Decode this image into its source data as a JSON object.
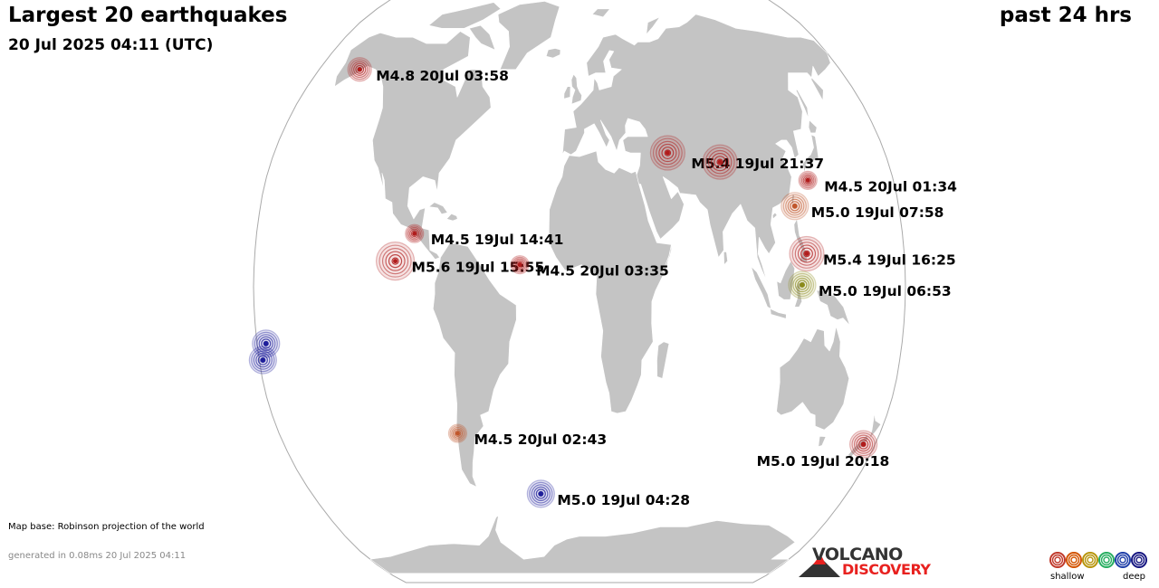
{
  "header": {
    "title": "Largest 20 earthquakes",
    "timestamp": "20 Jul 2025 04:11 (UTC)",
    "period": "past 24 hrs"
  },
  "footer": {
    "map_base": "Map base: Robinson projection of the world",
    "generated": "generated in 0.08ms 20 Jul 2025 04:11"
  },
  "branding": {
    "line1": "VOLCANO",
    "line2": "DISCOVERY",
    "colors": {
      "dark": "#333333",
      "red": "#e8211f"
    }
  },
  "legend": {
    "shallow_label": "shallow",
    "deep_label": "deep",
    "depth_colors": [
      "#c0392b",
      "#d35400",
      "#b7950b",
      "#27ae60",
      "#1f3fa8",
      "#151580"
    ]
  },
  "colors": {
    "ocean": "#ffffff",
    "land": "#c4c4c4",
    "land_border": "#ffffff",
    "map_outline": "#aaaaaa"
  },
  "earthquakes": [
    {
      "id": "q1",
      "label": "M4.8 20Jul 03:58",
      "magnitude": 4.8,
      "depth_class": "shallow",
      "color": "#b01c1c",
      "lat": 60.0,
      "lon": -152.0
    },
    {
      "id": "q2",
      "label": "M5.4 19Jul 21:37",
      "magnitude": 5.4,
      "depth_class": "shallow",
      "color": "#b01c1c",
      "lat": 36.5,
      "lon": 52.0
    },
    {
      "id": "q3",
      "label": "",
      "magnitude": 5.4,
      "depth_class": "shallow",
      "color": "#b01c1c",
      "lat": 34.0,
      "lon": 82.0
    },
    {
      "id": "q4",
      "label": "M4.5 20Jul 01:34",
      "magnitude": 4.5,
      "depth_class": "shallow",
      "color": "#b01c1c",
      "lat": 29.0,
      "lon": 131.0
    },
    {
      "id": "q5",
      "label": "M5.0 19Jul 07:58",
      "magnitude": 5.0,
      "depth_class": "intermediate",
      "color": "#c0562b",
      "lat": 22.0,
      "lon": 121.5
    },
    {
      "id": "q6",
      "label": "M5.4 19Jul 16:25",
      "magnitude": 5.4,
      "depth_class": "shallow",
      "color": "#b01c1c",
      "lat": 9.0,
      "lon": 126.0
    },
    {
      "id": "q7",
      "label": "M5.0 19Jul 06:53",
      "magnitude": 5.0,
      "depth_class": "intermediate-deep",
      "color": "#8a8a1a",
      "lat": 0.5,
      "lon": 123.0
    },
    {
      "id": "q8",
      "label": "M4.5 19Jul 14:41",
      "magnitude": 4.5,
      "depth_class": "shallow",
      "color": "#b01c1c",
      "lat": 14.5,
      "lon": -92.0
    },
    {
      "id": "q9",
      "label": "M5.6 19Jul 15:55",
      "magnitude": 5.6,
      "depth_class": "shallow",
      "color": "#b01c1c",
      "lat": 7.0,
      "lon": -102.0
    },
    {
      "id": "q10",
      "label": "M4.5 20Jul 03:35",
      "magnitude": 4.5,
      "depth_class": "shallow",
      "color": "#b01c1c",
      "lat": 6.0,
      "lon": -33.0
    },
    {
      "id": "q11",
      "label": "M4.5 20Jul 02:43",
      "magnitude": 4.5,
      "depth_class": "intermediate",
      "color": "#c0562b",
      "lat": -40.0,
      "lon": -73.0
    },
    {
      "id": "q12",
      "label": "M5.0 19Jul 04:28",
      "magnitude": 5.0,
      "depth_class": "deep",
      "color": "#1e1e9a",
      "lat": -57.0,
      "lon": -26.0
    },
    {
      "id": "q13",
      "label": "M5.0 19Jul 20:18",
      "magnitude": 5.0,
      "depth_class": "shallow",
      "color": "#b01c1c",
      "lat": -43.0,
      "lon": 173.0
    },
    {
      "id": "q14",
      "label": "",
      "magnitude": 5.0,
      "depth_class": "deep",
      "color": "#1e1e9a",
      "lat": -15.5,
      "lon": -175.0
    },
    {
      "id": "q15",
      "label": "",
      "magnitude": 5.0,
      "depth_class": "deep",
      "color": "#1e1e9a",
      "lat": -20.0,
      "lon": -178.0
    }
  ]
}
